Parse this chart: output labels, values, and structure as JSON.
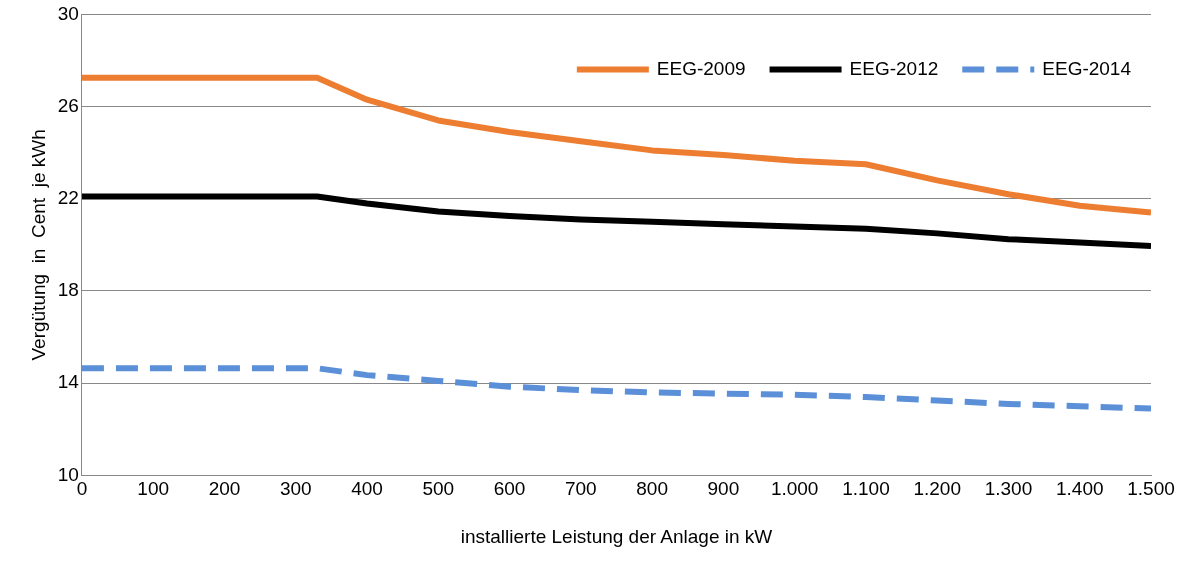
{
  "chart_data": {
    "type": "line",
    "xlabel": "installierte Leistung der Anlage in kW",
    "ylabel": "Vergütung  in  Cent  je kWh",
    "x": [
      0,
      330,
      400,
      500,
      600,
      700,
      800,
      900,
      1000,
      1100,
      1200,
      1300,
      1400,
      1500
    ],
    "series": [
      {
        "name": "EEG-2009",
        "color": "#ed7d31",
        "line_style": "solid",
        "values": [
          27.25,
          27.25,
          26.3,
          25.4,
          24.9,
          24.5,
          24.1,
          23.9,
          23.65,
          23.5,
          22.8,
          22.2,
          21.7,
          21.4
        ]
      },
      {
        "name": "EEG-2012",
        "color": "#000000",
        "line_style": "solid",
        "values": [
          22.1,
          22.1,
          21.8,
          21.45,
          21.25,
          21.1,
          21.0,
          20.9,
          20.8,
          20.7,
          20.5,
          20.25,
          20.1,
          19.95
        ]
      },
      {
        "name": "EEG-2014",
        "color": "#5b8fd8",
        "line_style": "dashed",
        "values": [
          14.65,
          14.65,
          14.35,
          14.1,
          13.85,
          13.7,
          13.6,
          13.55,
          13.5,
          13.4,
          13.25,
          13.1,
          13.0,
          12.9
        ]
      }
    ],
    "xlim": [
      0,
      1500
    ],
    "xticks": [
      0,
      100,
      200,
      300,
      400,
      500,
      600,
      700,
      800,
      900,
      {
        "value": 1000,
        "label": "1.000"
      },
      {
        "value": 1100,
        "label": "1.100"
      },
      {
        "value": 1200,
        "label": "1.200"
      },
      {
        "value": 1300,
        "label": "1.300"
      },
      {
        "value": 1400,
        "label": "1.400"
      },
      {
        "value": 1500,
        "label": "1.500"
      }
    ],
    "ylim": [
      10,
      30
    ],
    "yticks": [
      10,
      14,
      18,
      22,
      26,
      30
    ],
    "grid": "y",
    "legend": "top right",
    "marker": "none"
  }
}
